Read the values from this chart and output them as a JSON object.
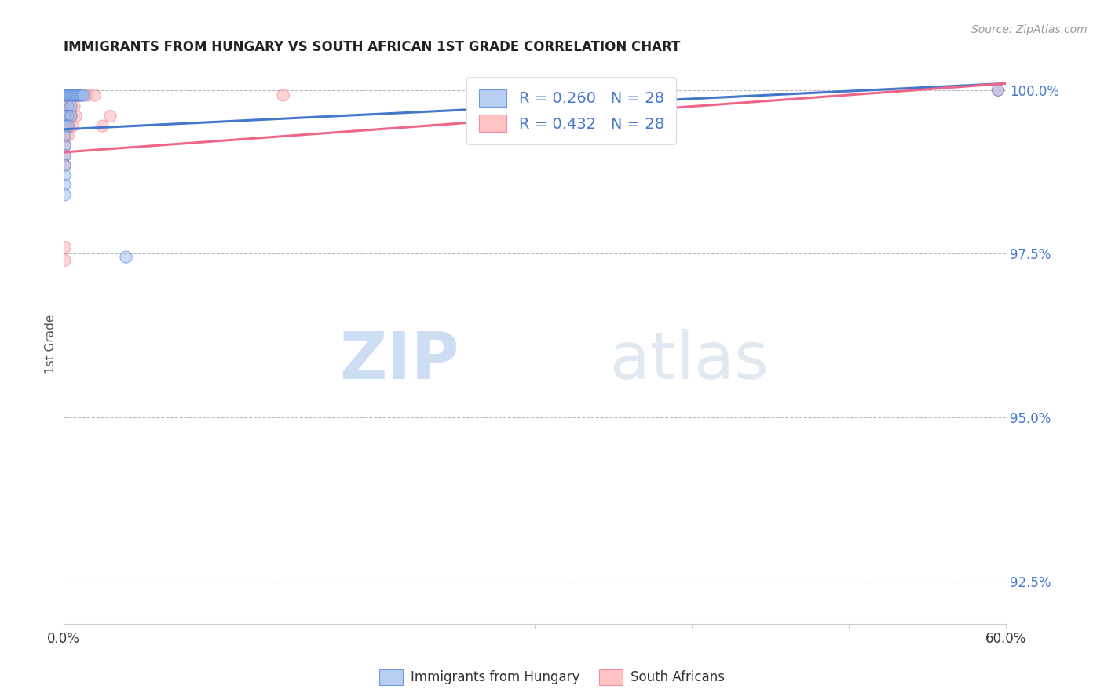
{
  "title": "IMMIGRANTS FROM HUNGARY VS SOUTH AFRICAN 1ST GRADE CORRELATION CHART",
  "source": "Source: ZipAtlas.com",
  "ylabel": "1st Grade",
  "ylabel_right_ticks": [
    "100.0%",
    "97.5%",
    "95.0%",
    "92.5%"
  ],
  "ylabel_right_vals": [
    1.0,
    0.975,
    0.95,
    0.925
  ],
  "legend_blue_r": "R = 0.260",
  "legend_blue_n": "N = 28",
  "legend_pink_r": "R = 0.432",
  "legend_pink_n": "N = 28",
  "legend_label_blue": "Immigrants from Hungary",
  "legend_label_pink": "South Africans",
  "blue_color": "#99BBEE",
  "pink_color": "#FFAAAA",
  "trendline_blue": "#4477CC",
  "trendline_pink": "#EE6688",
  "watermark_zip": "ZIP",
  "watermark_atlas": "atlas",
  "blue_scatter": [
    [
      0.002,
      0.9992
    ],
    [
      0.003,
      0.9992
    ],
    [
      0.004,
      0.9992
    ],
    [
      0.005,
      0.9992
    ],
    [
      0.006,
      0.9992
    ],
    [
      0.007,
      0.9992
    ],
    [
      0.008,
      0.9992
    ],
    [
      0.009,
      0.9992
    ],
    [
      0.01,
      0.9992
    ],
    [
      0.011,
      0.9992
    ],
    [
      0.012,
      0.9992
    ],
    [
      0.013,
      0.9992
    ],
    [
      0.003,
      0.9975
    ],
    [
      0.005,
      0.9975
    ],
    [
      0.001,
      0.996
    ],
    [
      0.003,
      0.996
    ],
    [
      0.005,
      0.996
    ],
    [
      0.001,
      0.9945
    ],
    [
      0.003,
      0.9945
    ],
    [
      0.001,
      0.993
    ],
    [
      0.001,
      0.9915
    ],
    [
      0.001,
      0.99
    ],
    [
      0.001,
      0.9885
    ],
    [
      0.001,
      0.987
    ],
    [
      0.001,
      0.9855
    ],
    [
      0.001,
      0.984
    ],
    [
      0.04,
      0.9745
    ],
    [
      0.595,
      1.0
    ]
  ],
  "pink_scatter": [
    [
      0.002,
      0.9992
    ],
    [
      0.004,
      0.9992
    ],
    [
      0.006,
      0.9992
    ],
    [
      0.008,
      0.9992
    ],
    [
      0.01,
      0.9992
    ],
    [
      0.015,
      0.9992
    ],
    [
      0.02,
      0.9992
    ],
    [
      0.001,
      0.9975
    ],
    [
      0.003,
      0.9975
    ],
    [
      0.007,
      0.9975
    ],
    [
      0.001,
      0.996
    ],
    [
      0.003,
      0.996
    ],
    [
      0.005,
      0.996
    ],
    [
      0.008,
      0.996
    ],
    [
      0.001,
      0.9945
    ],
    [
      0.004,
      0.9945
    ],
    [
      0.006,
      0.9945
    ],
    [
      0.001,
      0.993
    ],
    [
      0.003,
      0.993
    ],
    [
      0.001,
      0.9915
    ],
    [
      0.001,
      0.99
    ],
    [
      0.001,
      0.9885
    ],
    [
      0.03,
      0.996
    ],
    [
      0.025,
      0.9945
    ],
    [
      0.001,
      0.976
    ],
    [
      0.001,
      0.974
    ],
    [
      0.595,
      1.0
    ],
    [
      0.14,
      0.9992
    ]
  ],
  "blue_bubble_sizes": [
    120,
    120,
    120,
    120,
    120,
    120,
    120,
    120,
    120,
    120,
    120,
    120,
    120,
    120,
    120,
    120,
    120,
    120,
    120,
    120,
    120,
    120,
    120,
    120,
    120,
    120,
    120,
    120
  ],
  "pink_bubble_sizes": [
    120,
    120,
    120,
    120,
    120,
    120,
    120,
    120,
    120,
    120,
    120,
    120,
    120,
    120,
    120,
    120,
    120,
    120,
    120,
    120,
    120,
    120,
    120,
    120,
    120,
    120,
    120,
    120
  ],
  "xlim": [
    0.0,
    0.6
  ],
  "ylim": [
    0.9185,
    1.004
  ],
  "blue_trend_x": [
    0.0,
    0.6
  ],
  "blue_trend_y": [
    0.994,
    1.001
  ],
  "pink_trend_x": [
    0.0,
    0.6
  ],
  "pink_trend_y": [
    0.9905,
    1.001
  ]
}
